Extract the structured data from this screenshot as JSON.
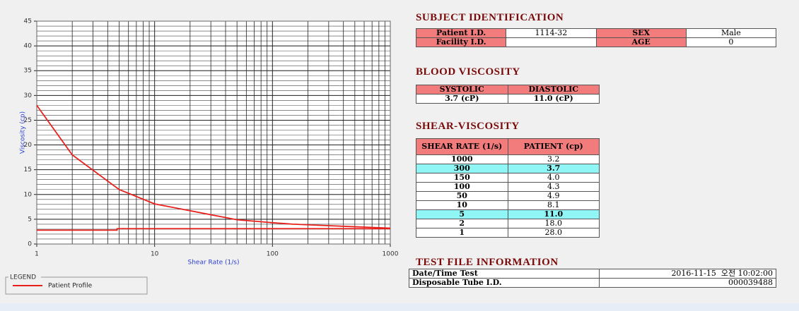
{
  "chart_data": {
    "type": "line",
    "x_label": "Shear Rate (1/s)",
    "y_label": "Viscosity (cp)",
    "log_x": true,
    "grid": true,
    "xlim": [
      1,
      1000
    ],
    "xticks": [
      1,
      10,
      100,
      1000
    ],
    "ylim": [
      0,
      45
    ],
    "yticks": [
      0,
      5,
      10,
      15,
      20,
      25,
      30,
      35,
      40,
      45
    ],
    "series": [
      {
        "name": "Patient Profile",
        "color": "#e8201c",
        "x": [
          1,
          2,
          5,
          10,
          50,
          100,
          150,
          300,
          1000
        ],
        "values": [
          28,
          18,
          11,
          8.1,
          4.9,
          4.3,
          4.0,
          3.7,
          3.2
        ]
      },
      {
        "color": "#e8201c",
        "x": [
          1,
          4.8,
          4.8,
          1000
        ],
        "values": [
          2.8,
          2.8,
          3.1,
          3.1
        ]
      }
    ],
    "legend_title": "LEGEND"
  },
  "subject": {
    "title": "SUBJECT IDENTIFICATION",
    "fields": [
      [
        {
          "label": "Patient I.D.",
          "value": "1114-32"
        },
        {
          "label": "SEX",
          "value": "Male"
        }
      ],
      [
        {
          "label": "Facility I.D."
        },
        {
          "label": "AGE",
          "value": "0"
        }
      ]
    ]
  },
  "blood": {
    "title": "BLOOD VISCOSITY",
    "header": [
      "SYSTOLIC",
      "DIASTOLIC"
    ],
    "values": [
      "3.7 (cP)",
      "11.0 (cP)"
    ]
  },
  "shear": {
    "title": "SHEAR-VISCOSITY",
    "header": [
      "SHEAR RATE (1/s)",
      "PATIENT (cp)"
    ],
    "rows": [
      {
        "cells": [
          "1000",
          "3.2"
        ]
      },
      {
        "cells": [
          "300",
          "3.7"
        ],
        "highlight": true
      },
      {
        "cells": [
          "150",
          "4.0"
        ]
      },
      {
        "cells": [
          "100",
          "4.3"
        ]
      },
      {
        "cells": [
          "50",
          "4.9"
        ]
      },
      {
        "cells": [
          "10",
          "8.1"
        ]
      },
      {
        "cells": [
          "5",
          "11.0"
        ],
        "highlight": true
      },
      {
        "cells": [
          "2",
          "18.0"
        ]
      },
      {
        "cells": [
          "1",
          "28.0"
        ]
      }
    ]
  },
  "testfile": {
    "title": "TEST FILE INFORMATION",
    "rows": [
      [
        "Date/Time Test",
        "2016-11-15  오전 10:02:00"
      ],
      [
        "Disposable Tube I.D.",
        "000039488"
      ]
    ]
  }
}
